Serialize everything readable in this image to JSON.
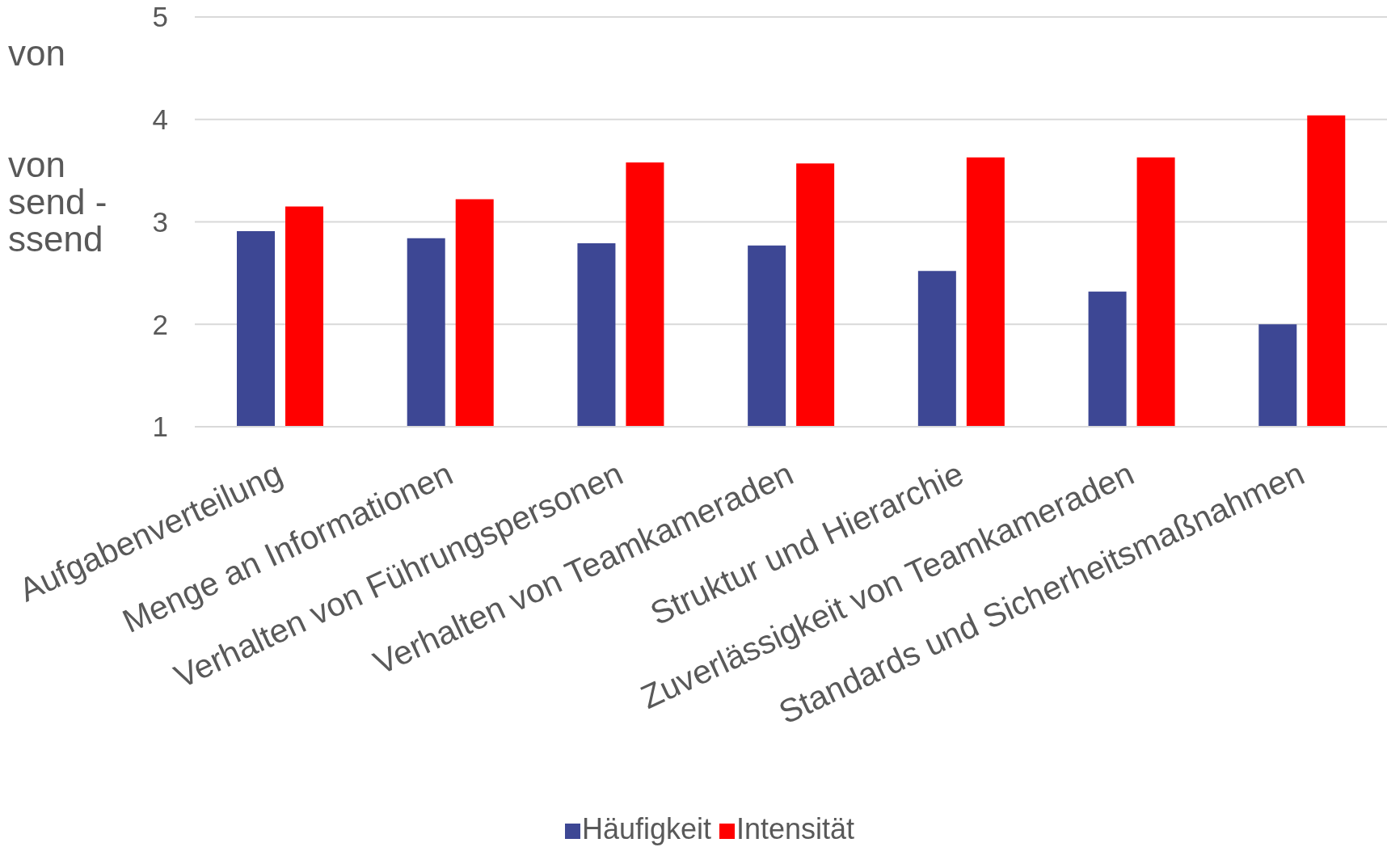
{
  "chart_data": {
    "type": "bar",
    "ylabel": "von\n\n\nvon\nsend -\nssend",
    "categories": [
      "Aufgabenverteilung",
      "Menge an Informationen",
      "Verhalten von Führungspersonen",
      "Verhalten von Teamkameraden",
      "Struktur und Hierarchie",
      "Zuverlässigkeit von Teamkameraden",
      "Standards und Sicherheitsmaßnahmen"
    ],
    "series": [
      {
        "name": "Häufigkeit",
        "color": "#3d4794",
        "values": [
          2.91,
          2.84,
          2.79,
          2.77,
          2.52,
          2.32,
          2.0
        ]
      },
      {
        "name": "Intensität",
        "color": "#ff0000",
        "values": [
          3.15,
          3.22,
          3.58,
          3.57,
          3.63,
          3.63,
          4.04
        ]
      }
    ],
    "ylim": [
      1,
      5
    ],
    "yticks": [
      1,
      2,
      3,
      4,
      5
    ],
    "grid": "y",
    "legend": "bottom"
  }
}
